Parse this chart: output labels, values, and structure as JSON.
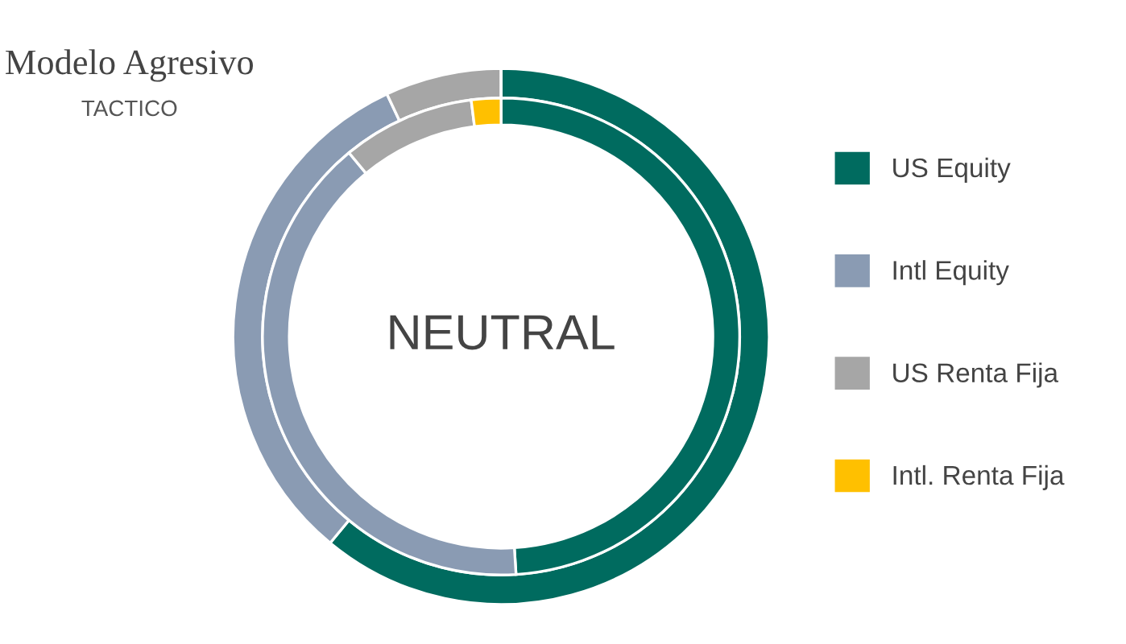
{
  "chart_data": {
    "type": "donut",
    "title": "Modelo Agresivo",
    "subtitle": "TACTICO",
    "annotations": [
      "NEUTRAL"
    ],
    "categories": [
      "US Equity",
      "Intl Equity",
      "US Renta Fija",
      "Intl. Renta Fija"
    ],
    "colors": [
      "#006b5f",
      "#8a9bb3",
      "#a6a6a6",
      "#ffc000"
    ],
    "series": [
      {
        "values": [
          61,
          32,
          7,
          0
        ]
      },
      {
        "values": [
          49,
          40,
          9,
          2
        ]
      }
    ],
    "legend": "right"
  }
}
